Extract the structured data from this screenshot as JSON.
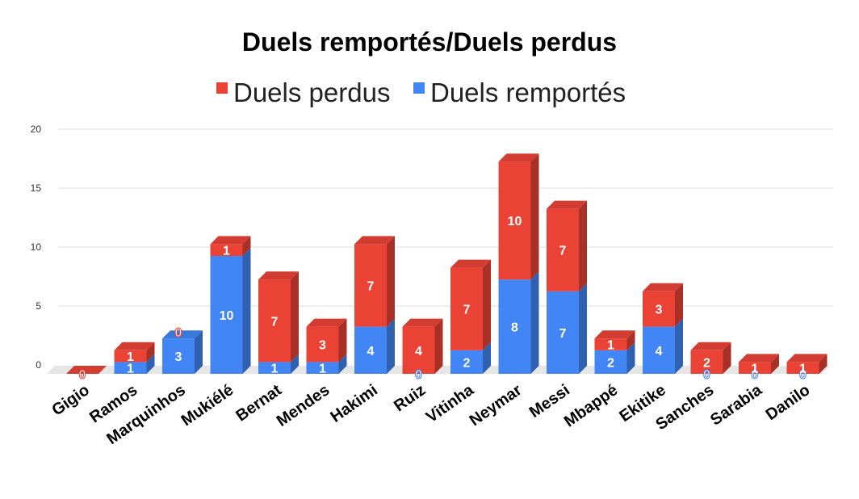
{
  "chart_data": {
    "type": "bar",
    "stacked": true,
    "style": "3d",
    "title": "Duels remportés/Duels perdus",
    "legend_position": "top",
    "categories": [
      "Gigio",
      "Ramos",
      "Marquinhos",
      "Mukiélé",
      "Bernat",
      "Mendes",
      "Hakimi",
      "Ruiz",
      "Vitinha",
      "Neymar",
      "Messi",
      "Mbappé",
      "Ekitike",
      "Sanches",
      "Sarabia",
      "Danilo"
    ],
    "series": [
      {
        "name": "Duels remportés",
        "color": "#4285f4",
        "values": [
          0,
          1,
          3,
          10,
          1,
          1,
          4,
          0,
          2,
          8,
          7,
          2,
          4,
          0,
          0,
          0
        ]
      },
      {
        "name": "Duels perdus",
        "color": "#ea4335",
        "values": [
          0,
          1,
          0,
          1,
          7,
          3,
          7,
          4,
          7,
          10,
          7,
          1,
          3,
          2,
          1,
          1
        ]
      }
    ],
    "legend_order": [
      "Duels perdus",
      "Duels remportés"
    ],
    "yticks": [
      "0",
      "5",
      "10",
      "15",
      "20"
    ],
    "ylim": [
      0,
      20
    ],
    "grid": true,
    "xlabel": "",
    "ylabel": ""
  }
}
